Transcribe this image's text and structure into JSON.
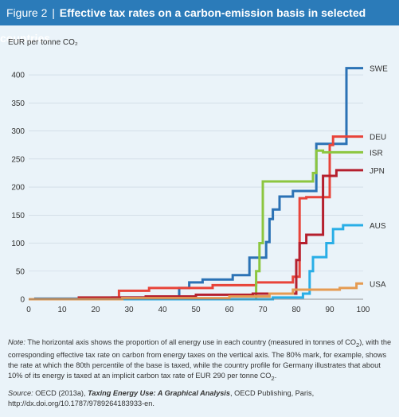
{
  "header": {
    "figure_label": "Figure 2",
    "separator": "|",
    "title": "Effective tax rates on a carbon-emission basis in selected countries"
  },
  "chart_data": {
    "type": "line",
    "ylabel": "EUR per tonne CO₂",
    "xlabel": "",
    "xlim": [
      0,
      100
    ],
    "ylim": [
      0,
      420
    ],
    "x_ticks": [
      0,
      10,
      20,
      30,
      40,
      50,
      60,
      70,
      80,
      90,
      100
    ],
    "y_ticks": [
      0,
      50,
      100,
      150,
      200,
      250,
      300,
      350,
      400
    ],
    "grid": "horizontal",
    "series": [
      {
        "name": "SWE",
        "color": "#2b72b5",
        "points": [
          [
            0,
            0
          ],
          [
            2,
            0
          ],
          [
            2,
            1
          ],
          [
            25,
            1
          ],
          [
            25,
            3
          ],
          [
            45,
            3
          ],
          [
            45,
            20
          ],
          [
            48,
            20
          ],
          [
            48,
            30
          ],
          [
            52,
            30
          ],
          [
            52,
            35
          ],
          [
            61,
            35
          ],
          [
            61,
            43
          ],
          [
            66,
            43
          ],
          [
            66,
            74
          ],
          [
            71,
            74
          ],
          [
            71,
            102
          ],
          [
            72,
            102
          ],
          [
            72,
            143
          ],
          [
            73,
            143
          ],
          [
            73,
            160
          ],
          [
            75,
            160
          ],
          [
            75,
            183
          ],
          [
            79,
            183
          ],
          [
            79,
            193
          ],
          [
            86,
            193
          ],
          [
            86,
            277
          ],
          [
            95,
            277
          ],
          [
            95,
            412
          ],
          [
            100,
            412
          ]
        ]
      },
      {
        "name": "DEU",
        "color": "#e8443a",
        "points": [
          [
            0,
            0
          ],
          [
            27,
            0
          ],
          [
            27,
            15
          ],
          [
            36,
            15
          ],
          [
            36,
            20
          ],
          [
            55,
            20
          ],
          [
            55,
            25
          ],
          [
            68,
            25
          ],
          [
            68,
            30
          ],
          [
            79,
            30
          ],
          [
            79,
            40
          ],
          [
            81,
            40
          ],
          [
            81,
            180
          ],
          [
            83,
            180
          ],
          [
            83,
            182
          ],
          [
            90,
            182
          ],
          [
            90,
            275
          ],
          [
            91,
            275
          ],
          [
            91,
            290
          ],
          [
            100,
            290
          ]
        ]
      },
      {
        "name": "ISR",
        "color": "#8cc63f",
        "points": [
          [
            0,
            0
          ],
          [
            68,
            0
          ],
          [
            68,
            50
          ],
          [
            69,
            50
          ],
          [
            69,
            100
          ],
          [
            70,
            100
          ],
          [
            70,
            210
          ],
          [
            85,
            210
          ],
          [
            85,
            225
          ],
          [
            86,
            225
          ],
          [
            86,
            265
          ],
          [
            88,
            265
          ],
          [
            88,
            262
          ],
          [
            100,
            262
          ]
        ]
      },
      {
        "name": "JPN",
        "color": "#b5202e",
        "points": [
          [
            0,
            0
          ],
          [
            15,
            0
          ],
          [
            15,
            3
          ],
          [
            35,
            3
          ],
          [
            35,
            5
          ],
          [
            50,
            5
          ],
          [
            50,
            8
          ],
          [
            67,
            8
          ],
          [
            67,
            10
          ],
          [
            80,
            10
          ],
          [
            80,
            70
          ],
          [
            81,
            70
          ],
          [
            81,
            100
          ],
          [
            83,
            100
          ],
          [
            83,
            115
          ],
          [
            88,
            115
          ],
          [
            88,
            220
          ],
          [
            92,
            220
          ],
          [
            92,
            230
          ],
          [
            100,
            230
          ]
        ]
      },
      {
        "name": "AUS",
        "color": "#29aee6",
        "points": [
          [
            0,
            0
          ],
          [
            73,
            0
          ],
          [
            73,
            3
          ],
          [
            82,
            3
          ],
          [
            82,
            10
          ],
          [
            84,
            10
          ],
          [
            84,
            50
          ],
          [
            85,
            50
          ],
          [
            85,
            75
          ],
          [
            89,
            75
          ],
          [
            89,
            100
          ],
          [
            91,
            100
          ],
          [
            91,
            125
          ],
          [
            94,
            125
          ],
          [
            94,
            132
          ],
          [
            100,
            132
          ]
        ]
      },
      {
        "name": "USA",
        "color": "#e59b52",
        "points": [
          [
            0,
            0
          ],
          [
            28,
            0
          ],
          [
            28,
            2
          ],
          [
            60,
            2
          ],
          [
            60,
            5
          ],
          [
            72,
            5
          ],
          [
            72,
            10
          ],
          [
            79,
            10
          ],
          [
            79,
            17
          ],
          [
            93,
            17
          ],
          [
            93,
            20
          ],
          [
            98,
            20
          ],
          [
            98,
            28
          ],
          [
            100,
            28
          ]
        ]
      }
    ]
  },
  "note": {
    "label": "Note:",
    "text1": " The horizontal axis shows the proportion of all energy use in each country (measured in tonnes of CO",
    "sub1": "2",
    "text2": "), with the corresponding effective tax rate on carbon from energy taxes on the vertical axis. The 80% mark, for example, shows the rate at which the 80th percentile of the base is taxed, while the country profile for Germany illustrates that about 10% of its energy is taxed at an implicit carbon tax rate of EUR 290 per tonne CO",
    "sub2": "2",
    "text3": "."
  },
  "source": {
    "label": "Source:",
    "text1": " OECD (2013a), ",
    "title": "Taxing Energy Use: A Graphical Analysis",
    "text2": ", OECD Publishing, Paris, http://dx.doi.org/10.1787/9789264183933-en."
  }
}
